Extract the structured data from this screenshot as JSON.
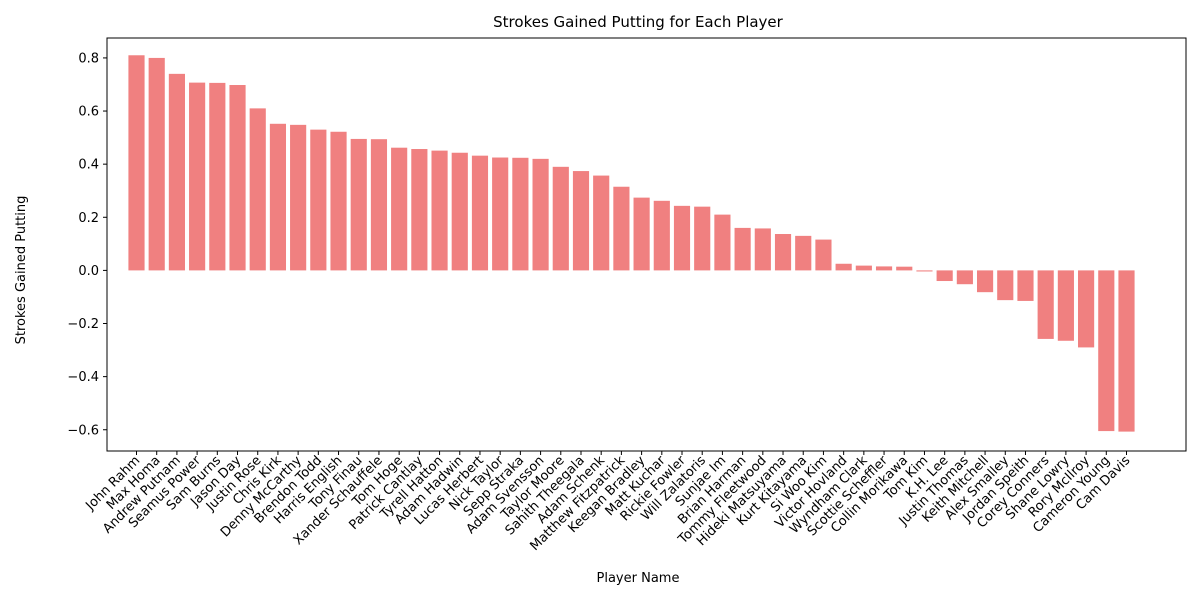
{
  "colors": {
    "bar": "#f08080",
    "axis": "#000000",
    "background": "#ffffff"
  },
  "chart_data": {
    "type": "bar",
    "title": "Strokes Gained Putting for Each Player",
    "xlabel": "Player Name",
    "ylabel": "Strokes Gained Putting",
    "ylim": [
      -0.68,
      0.875
    ],
    "yticks": [
      -0.6,
      -0.4,
      -0.2,
      0.0,
      0.2,
      0.4,
      0.6,
      0.8
    ],
    "ytick_labels": [
      "−0.6",
      "−0.4",
      "−0.2",
      "0.0",
      "0.2",
      "0.4",
      "0.6",
      "0.8"
    ],
    "grid": false,
    "categories": [
      "John Rahm",
      "Max Homa",
      "Andrew Putnam",
      "Seamus Power",
      "Sam Burns",
      "Jason Day",
      "Justin Rose",
      "Chris Kirk",
      "Denny McCarthy",
      "Brendon Todd",
      "Harris English",
      "Tony Finau",
      "Xander Schauffele",
      "Tom Hoge",
      "Patrick Cantlay",
      "Tyrell Hatton",
      "Adam Hadwin",
      "Lucas Herbert",
      "Nick Taylor",
      "Sepp Straka",
      "Adam Svensson",
      "Taylor Moore",
      "Sahith Theegala",
      "Adam Schenk",
      "Matthew Fitzpatrick",
      "Keegan Bradley",
      "Matt Kuchar",
      "Rickie Fowler",
      "Will Zalatoris",
      "Sunjae Im",
      "Brian Harman",
      "Tommy Fleetwood",
      "Hideki Matsuyama",
      "Kurt Kitayama",
      "Si Woo Kim",
      "Victor Hovland",
      "Wyndham Clark",
      "Scottie Scheffler",
      "Collin Morikawa",
      "Tom Kim",
      "K.H. Lee",
      "Justin Thomas",
      "Keith Mitchell",
      "Alex Smalley",
      "Jordan Speith",
      "Corey Conners",
      "Shane Lowry",
      "Rory McIlroy",
      "Cameron Young",
      "Cam Davis"
    ],
    "values": [
      0.81,
      0.8,
      0.74,
      0.707,
      0.706,
      0.698,
      0.61,
      0.552,
      0.548,
      0.53,
      0.522,
      0.495,
      0.494,
      0.462,
      0.457,
      0.451,
      0.443,
      0.432,
      0.425,
      0.424,
      0.42,
      0.39,
      0.374,
      0.357,
      0.315,
      0.274,
      0.262,
      0.243,
      0.24,
      0.21,
      0.16,
      0.158,
      0.137,
      0.13,
      0.116,
      0.025,
      0.018,
      0.015,
      0.014,
      -0.004,
      -0.04,
      -0.052,
      -0.082,
      -0.112,
      -0.115,
      -0.258,
      -0.265,
      -0.29,
      -0.605,
      -0.607
    ]
  }
}
